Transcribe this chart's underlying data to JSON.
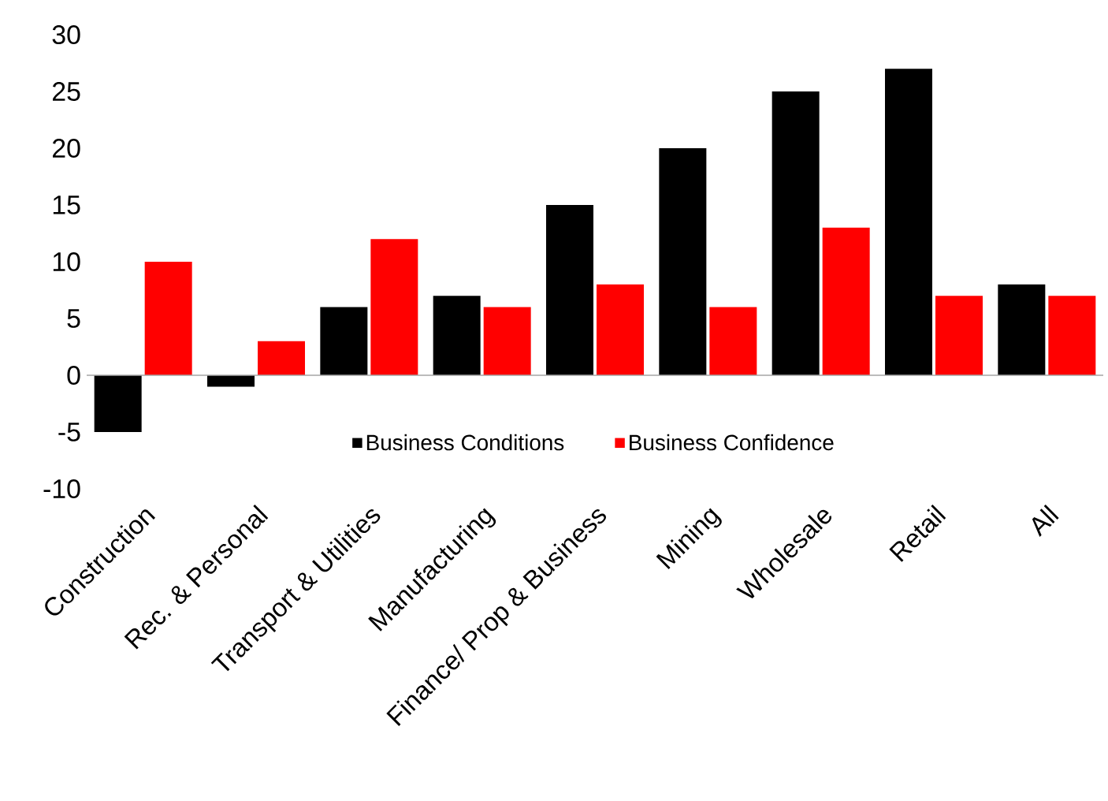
{
  "chart_data": {
    "type": "bar",
    "categories": [
      "Construction",
      "Rec. & Personal",
      "Transport & Utilities",
      "Manufacturing",
      "Finance/ Prop & Business",
      "Mining",
      "Wholesale",
      "Retail",
      "All"
    ],
    "series": [
      {
        "name": "Business Conditions",
        "color": "#000000",
        "values": [
          -5,
          -1,
          6,
          7,
          15,
          20,
          25,
          27,
          8
        ]
      },
      {
        "name": "Business Confidence",
        "color": "#ff0000",
        "values": [
          10,
          3,
          12,
          6,
          8,
          6,
          13,
          7,
          7
        ]
      }
    ],
    "ylim": [
      -10,
      30
    ],
    "yticks": [
      -10,
      -5,
      0,
      5,
      10,
      15,
      20,
      25,
      30
    ],
    "legend": "bottom"
  }
}
